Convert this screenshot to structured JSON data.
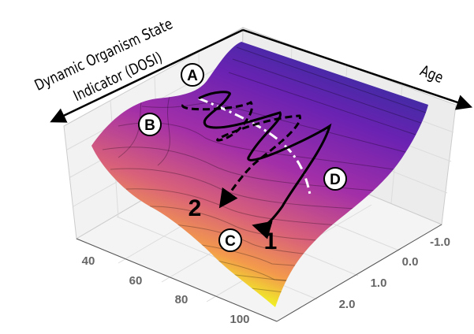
{
  "chart_data": {
    "type": "surface",
    "title": "",
    "axes": {
      "dosi_label_line1": "Dynamic Organism State",
      "dosi_label_line2": "Indicator (DOSI)",
      "age_label": "Age",
      "age_ticks": [
        "40",
        "60",
        "80",
        "100"
      ],
      "dosi_ticks": [
        "-1.0",
        "0.0",
        "1.0",
        "2.0"
      ],
      "age_range": [
        30,
        105
      ],
      "dosi_range": [
        -1.5,
        2.5
      ]
    },
    "colormap": [
      "#2c2c9c",
      "#7a22b0",
      "#b23c9c",
      "#dc6a70",
      "#f2a04a",
      "#f0f921"
    ],
    "grid": true,
    "annotations": {
      "points": [
        "A",
        "B",
        "C",
        "D"
      ],
      "trajectories": [
        "1",
        "2"
      ]
    }
  }
}
